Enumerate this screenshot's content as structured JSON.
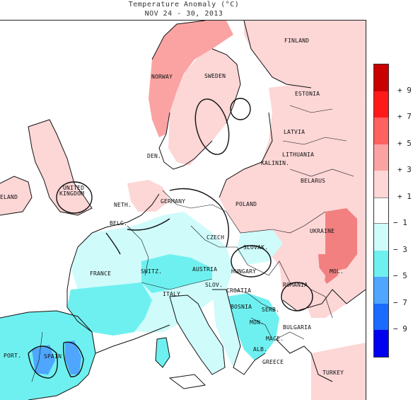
{
  "title": {
    "line1": "Temperature Anomaly (°C)",
    "line2": "NOV 24 - 30, 2013"
  },
  "labels": [
    {
      "id": "finland",
      "text": "FINLAND"
    },
    {
      "id": "norway",
      "text": "NORWAY"
    },
    {
      "id": "sweden",
      "text": "SWEDEN"
    },
    {
      "id": "estonia",
      "text": "ESTONIA"
    },
    {
      "id": "latvia",
      "text": "LATVIA"
    },
    {
      "id": "lithuania",
      "text": "LITHUANIA"
    },
    {
      "id": "kalinin",
      "text": "KALININ."
    },
    {
      "id": "belarus",
      "text": "BELARUS"
    },
    {
      "id": "den",
      "text": "DEN."
    },
    {
      "id": "united",
      "text": "UNITED"
    },
    {
      "id": "kingdom",
      "text": "KINGDOM"
    },
    {
      "id": "ireland",
      "text": "ELAND"
    },
    {
      "id": "neth",
      "text": "NETH."
    },
    {
      "id": "germany",
      "text": "GERMANY"
    },
    {
      "id": "poland",
      "text": "POLAND"
    },
    {
      "id": "ukraine",
      "text": "UKRAINE"
    },
    {
      "id": "belg",
      "text": "BELG."
    },
    {
      "id": "czech",
      "text": "CZECH"
    },
    {
      "id": "slovak",
      "text": "SLOVAK."
    },
    {
      "id": "france",
      "text": "FRANCE"
    },
    {
      "id": "switz",
      "text": "SWITZ."
    },
    {
      "id": "austria",
      "text": "AUSTRIA"
    },
    {
      "id": "hungary",
      "text": "HUNGARY"
    },
    {
      "id": "romania",
      "text": "ROMANIA"
    },
    {
      "id": "mol",
      "text": "MOL."
    },
    {
      "id": "slov",
      "text": "SLOV."
    },
    {
      "id": "croatia",
      "text": "CROATIA"
    },
    {
      "id": "italy",
      "text": "ITALY"
    },
    {
      "id": "bosnia",
      "text": "BOSNIA"
    },
    {
      "id": "serb",
      "text": "SERB."
    },
    {
      "id": "mon",
      "text": "MON."
    },
    {
      "id": "bulgaria",
      "text": "BULGARIA"
    },
    {
      "id": "mace",
      "text": "MACE."
    },
    {
      "id": "alb",
      "text": "ALB."
    },
    {
      "id": "greece",
      "text": "GREECE"
    },
    {
      "id": "port",
      "text": "PORT."
    },
    {
      "id": "spain",
      "text": "SPAIN"
    },
    {
      "id": "turkey",
      "text": "TURKEY"
    }
  ],
  "legend": {
    "ticks": [
      "9",
      "7",
      "5",
      "3",
      "1",
      "-1",
      "-3",
      "-5",
      "-7",
      "-9"
    ],
    "bins": [
      {
        "range": "7 to 9+",
        "color": "#c80000"
      },
      {
        "range": "5 to 7",
        "color": "#ff1a1a"
      },
      {
        "range": "3 to 5",
        "color": "#ff6060"
      },
      {
        "range": "1 to 3",
        "color": "#fba3a3"
      },
      {
        "range": "0.5 to 1",
        "color": "#fdd6d6"
      },
      {
        "range": "-1 to 1",
        "color": "#ffffff"
      },
      {
        "range": "-3 to -1",
        "color": "#cffbfb"
      },
      {
        "range": "-5 to -3",
        "color": "#6ff0f0"
      },
      {
        "range": "-7 to -5",
        "color": "#4fa6ff"
      },
      {
        "range": "-9 to -7",
        "color": "#1a6bff"
      },
      {
        "range": "-9-",
        "color": "#0000f0"
      }
    ]
  },
  "colors": {
    "warm_light": "#fdd6d6",
    "warm_medium": "#fba3a3",
    "warm_strong": "#f28080",
    "cold_light": "#cffbfb",
    "cold_medium": "#6ff0f0",
    "cold_strong": "#4fa6ff",
    "land_neutral": "#ffffff",
    "sea": "#ffffff",
    "coast": "#111111"
  }
}
